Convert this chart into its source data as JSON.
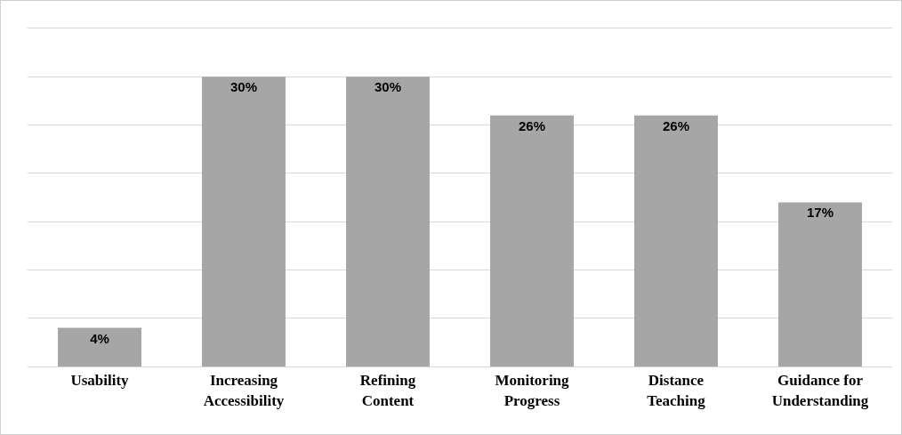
{
  "chart_data": {
    "type": "bar",
    "categories": [
      "Usability",
      "Increasing\nAccessibility",
      "Refining\nContent",
      "Monitoring\nProgress",
      "Distance\nTeaching",
      "Guidance for\nUnderstanding"
    ],
    "values": [
      4,
      30,
      30,
      26,
      26,
      17
    ],
    "value_labels": [
      "4%",
      "30%",
      "30%",
      "26%",
      "26%",
      "17%"
    ],
    "color": "#a6a6a6",
    "ylim": [
      0,
      35
    ],
    "yticks": [
      {
        "value": 0,
        "label": null
      },
      {
        "value": 5,
        "label": null
      },
      {
        "value": 10,
        "label": null
      },
      {
        "value": 15,
        "label": null
      },
      {
        "value": 20,
        "label": null
      },
      {
        "value": 25,
        "label": null
      },
      {
        "value": 30,
        "label": null
      },
      {
        "value": 35,
        "label": null
      }
    ],
    "grid": "y",
    "tick_labels": "x"
  }
}
